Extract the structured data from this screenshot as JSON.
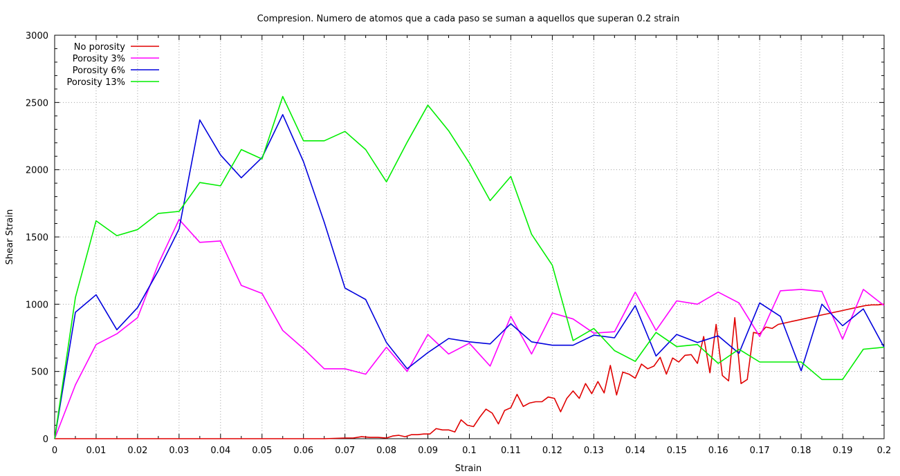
{
  "chart_data": {
    "type": "line",
    "title": "Compresion. Numero de atomos que a cada paso se suman a aquellos que superan 0.2 strain",
    "xlabel": "Strain",
    "ylabel": "Shear Strain",
    "xlim": [
      0,
      0.2
    ],
    "ylim": [
      0,
      3000
    ],
    "xticks": [
      "0",
      "0.01",
      "0.02",
      "0.03",
      "0.04",
      "0.05",
      "0.06",
      "0.07",
      "0.08",
      "0.09",
      "0.1",
      "0.11",
      "0.12",
      "0.13",
      "0.14",
      "0.15",
      "0.16",
      "0.17",
      "0.18",
      "0.19",
      "0.2"
    ],
    "yticks": [
      "0",
      "500",
      "1000",
      "1500",
      "2000",
      "2500",
      "3000"
    ],
    "grid": true,
    "legend_position": "top-left",
    "series": [
      {
        "name": "No porosity",
        "color": "#e00000",
        "x": [
          0,
          0.005,
          0.01,
          0.015,
          0.02,
          0.025,
          0.03,
          0.035,
          0.04,
          0.045,
          0.05,
          0.055,
          0.06,
          0.065,
          0.07,
          0.072,
          0.074,
          0.076,
          0.078,
          0.08,
          0.0815,
          0.083,
          0.0845,
          0.086,
          0.0875,
          0.089,
          0.0905,
          0.092,
          0.0935,
          0.095,
          0.0965,
          0.098,
          0.0995,
          0.101,
          0.1025,
          0.104,
          0.1055,
          0.107,
          0.1085,
          0.11,
          0.1115,
          0.113,
          0.1145,
          0.116,
          0.1175,
          0.119,
          0.1205,
          0.122,
          0.1235,
          0.125,
          0.1265,
          0.128,
          0.1295,
          0.131,
          0.1325,
          0.134,
          0.1355,
          0.137,
          0.1385,
          0.14,
          0.1415,
          0.143,
          0.1445,
          0.146,
          0.1475,
          0.149,
          0.1505,
          0.152,
          0.1535,
          0.155,
          0.1565,
          0.158,
          0.1595,
          0.161,
          0.1625,
          0.164,
          0.1655,
          0.167,
          0.1685,
          0.17,
          0.1715,
          0.173,
          0.1745,
          0.176,
          0.1775,
          0.179,
          0.1805,
          0.182,
          0.1835,
          0.185,
          0.1865,
          0.188,
          0.1895,
          0.191,
          0.1925,
          0.194,
          0.1955,
          0.197,
          0.1985,
          0.2
        ],
        "values": [
          0,
          0,
          0,
          0,
          0,
          0,
          0,
          0,
          0,
          0,
          0,
          0,
          0,
          0,
          5,
          5,
          15,
          10,
          10,
          5,
          20,
          25,
          15,
          30,
          30,
          35,
          35,
          75,
          65,
          65,
          50,
          140,
          100,
          90,
          160,
          220,
          190,
          110,
          210,
          230,
          330,
          240,
          265,
          275,
          275,
          310,
          300,
          200,
          300,
          355,
          300,
          410,
          335,
          425,
          340,
          545,
          325,
          495,
          480,
          450,
          555,
          520,
          540,
          605,
          480,
          600,
          570,
          620,
          625,
          560,
          760,
          490,
          850,
          470,
          430,
          900,
          410,
          440,
          790,
          780,
          830,
          820,
          850,
          860,
          870,
          880,
          890,
          900,
          910,
          920,
          930,
          940,
          950,
          960,
          970,
          980,
          990,
          995,
          995,
          1000
        ]
      },
      {
        "name": "Porosity 3%",
        "color": "#ff00ff",
        "x": [
          0,
          0.005,
          0.01,
          0.015,
          0.02,
          0.025,
          0.03,
          0.035,
          0.04,
          0.045,
          0.05,
          0.055,
          0.06,
          0.065,
          0.07,
          0.075,
          0.08,
          0.085,
          0.09,
          0.095,
          0.1,
          0.105,
          0.11,
          0.115,
          0.12,
          0.125,
          0.13,
          0.135,
          0.14,
          0.145,
          0.15,
          0.155,
          0.16,
          0.165,
          0.17,
          0.175,
          0.18,
          0.185,
          0.19,
          0.195,
          0.2
        ],
        "values": [
          0,
          400,
          700,
          780,
          900,
          1300,
          1630,
          1460,
          1470,
          1140,
          1080,
          805,
          670,
          520,
          520,
          480,
          680,
          500,
          775,
          630,
          710,
          540,
          910,
          630,
          935,
          890,
          785,
          795,
          1090,
          805,
          1025,
          1000,
          1090,
          1010,
          760,
          1100,
          1110,
          1095,
          740,
          1110,
          990
        ]
      },
      {
        "name": "Porosity 6%",
        "color": "#0000dd",
        "x": [
          0,
          0.005,
          0.01,
          0.015,
          0.02,
          0.025,
          0.03,
          0.035,
          0.04,
          0.045,
          0.05,
          0.055,
          0.06,
          0.065,
          0.07,
          0.075,
          0.08,
          0.085,
          0.09,
          0.095,
          0.1,
          0.105,
          0.11,
          0.115,
          0.12,
          0.125,
          0.13,
          0.135,
          0.14,
          0.145,
          0.15,
          0.155,
          0.16,
          0.165,
          0.17,
          0.175,
          0.18,
          0.185,
          0.19,
          0.195,
          0.2
        ],
        "values": [
          0,
          940,
          1070,
          810,
          975,
          1250,
          1560,
          2370,
          2110,
          1940,
          2090,
          2410,
          2060,
          1610,
          1120,
          1035,
          715,
          520,
          640,
          745,
          720,
          705,
          855,
          720,
          695,
          695,
          770,
          750,
          990,
          615,
          775,
          715,
          765,
          635,
          1010,
          910,
          505,
          1000,
          840,
          965,
          680
        ]
      },
      {
        "name": "Porosity 13%",
        "color": "#00ee00",
        "x": [
          0,
          0.005,
          0.01,
          0.015,
          0.02,
          0.025,
          0.03,
          0.035,
          0.04,
          0.045,
          0.05,
          0.055,
          0.06,
          0.065,
          0.07,
          0.075,
          0.08,
          0.085,
          0.09,
          0.095,
          0.1,
          0.105,
          0.11,
          0.115,
          0.12,
          0.125,
          0.13,
          0.135,
          0.14,
          0.145,
          0.15,
          0.155,
          0.16,
          0.165,
          0.17,
          0.175,
          0.18,
          0.185,
          0.19,
          0.195,
          0.2
        ],
        "values": [
          0,
          1050,
          1620,
          1510,
          1555,
          1675,
          1690,
          1905,
          1880,
          2150,
          2080,
          2545,
          2215,
          2215,
          2285,
          2150,
          1910,
          2205,
          2480,
          2290,
          2050,
          1770,
          1950,
          1520,
          1290,
          730,
          820,
          655,
          575,
          790,
          685,
          700,
          560,
          665,
          570,
          570,
          570,
          440,
          440,
          665,
          680
        ]
      }
    ]
  }
}
